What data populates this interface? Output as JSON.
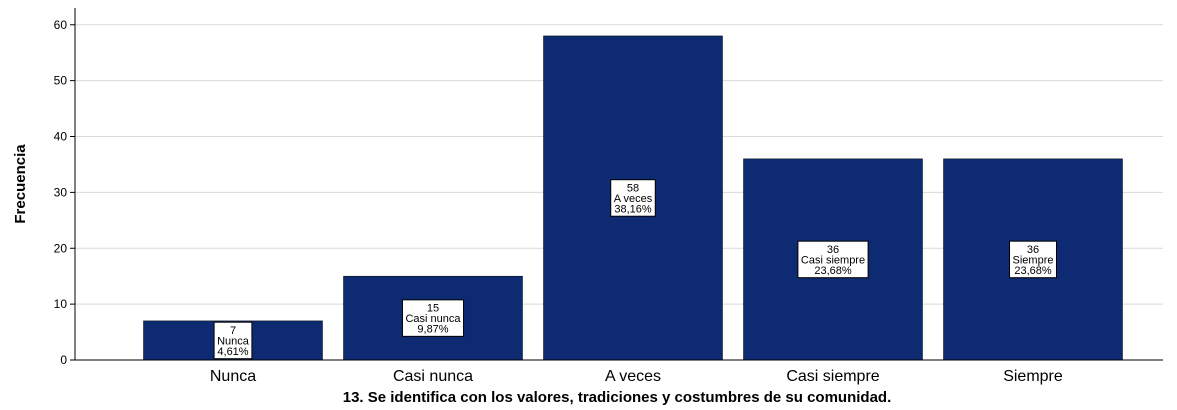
{
  "chart_data": {
    "type": "bar",
    "categories": [
      "Nunca",
      "Casi nunca",
      "A veces",
      "Casi siempre",
      "Siempre"
    ],
    "values": [
      7,
      15,
      58,
      36,
      36
    ],
    "data_labels": [
      [
        "7",
        "Nunca",
        "4,61%"
      ],
      [
        "15",
        "Casi nunca",
        "9,87%"
      ],
      [
        "58",
        "A veces",
        "38,16%"
      ],
      [
        "36",
        "Casi siempre",
        "23,68%"
      ],
      [
        "36",
        "Siempre",
        "23,68%"
      ]
    ],
    "xlabel": "13.  Se identifica con los valores, tradiciones y costumbres de su comunidad.",
    "ylabel": "Frecuencia",
    "ylim": [
      0,
      63
    ],
    "yticks": [
      0,
      10,
      20,
      30,
      40,
      50,
      60
    ],
    "grid": true,
    "bar_color": "#0d2a72"
  }
}
